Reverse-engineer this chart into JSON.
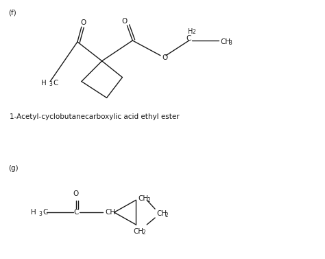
{
  "bg_color": "#ffffff",
  "text_color": "#1a1a1a",
  "line_color": "#1a1a1a",
  "label_f": "(f)",
  "label_g": "(g)",
  "name_f": "1-Acetyl-cyclobutanecarboxylic acid ethyl ester",
  "fs_label": 7.5,
  "fs_name": 7.5,
  "fs_chem": 7.5,
  "fs_sub": 5.5,
  "lw": 1.0
}
